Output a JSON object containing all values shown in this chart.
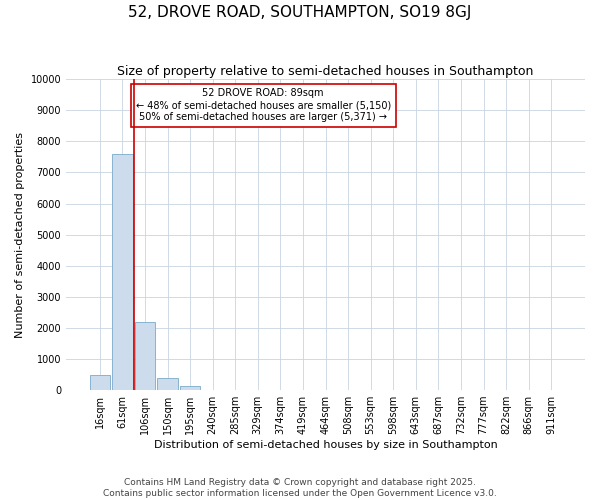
{
  "title": "52, DROVE ROAD, SOUTHAMPTON, SO19 8GJ",
  "subtitle": "Size of property relative to semi-detached houses in Southampton",
  "xlabel": "Distribution of semi-detached houses by size in Southampton",
  "ylabel": "Number of semi-detached properties",
  "categories": [
    "16sqm",
    "61sqm",
    "106sqm",
    "150sqm",
    "195sqm",
    "240sqm",
    "285sqm",
    "329sqm",
    "374sqm",
    "419sqm",
    "464sqm",
    "508sqm",
    "553sqm",
    "598sqm",
    "643sqm",
    "687sqm",
    "732sqm",
    "777sqm",
    "822sqm",
    "866sqm",
    "911sqm"
  ],
  "values": [
    500,
    7600,
    2200,
    380,
    130,
    0,
    0,
    0,
    0,
    0,
    0,
    0,
    0,
    0,
    0,
    0,
    0,
    0,
    0,
    0,
    0
  ],
  "bar_color": "#ccdcec",
  "bar_edge_color": "#7aaaca",
  "grid_color": "#c8d4e0",
  "vline_color": "#cc0000",
  "vline_x_index": 1.5,
  "annotation_line1": "52 DROVE ROAD: 89sqm",
  "annotation_line2": "← 48% of semi-detached houses are smaller (5,150)",
  "annotation_line3": "50% of semi-detached houses are larger (5,371) →",
  "annotation_box_color": "#ffffff",
  "annotation_box_edge": "#cc0000",
  "footer": "Contains HM Land Registry data © Crown copyright and database right 2025.\nContains public sector information licensed under the Open Government Licence v3.0.",
  "ylim": [
    0,
    10000
  ],
  "yticks": [
    0,
    1000,
    2000,
    3000,
    4000,
    5000,
    6000,
    7000,
    8000,
    9000,
    10000
  ],
  "title_fontsize": 11,
  "subtitle_fontsize": 9,
  "label_fontsize": 8,
  "tick_fontsize": 7,
  "annot_fontsize": 7,
  "footer_fontsize": 6.5,
  "background_color": "#ffffff",
  "fig_width": 6.0,
  "fig_height": 5.0,
  "dpi": 100
}
